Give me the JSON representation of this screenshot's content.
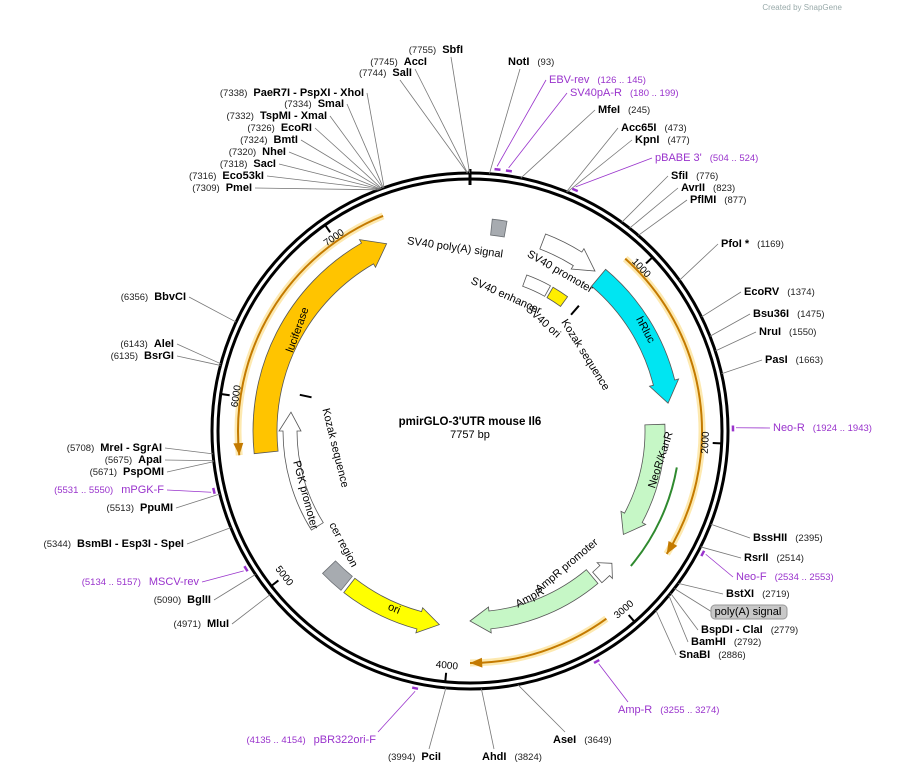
{
  "header": {
    "credit": "Created by SnapGene"
  },
  "map": {
    "name": "pmirGLO-3'UTR mouse Il6",
    "length": "7757 bp",
    "ticks": [
      1000,
      2000,
      3000,
      4000,
      5000,
      6000,
      7000
    ]
  },
  "sites": [
    {
      "name": "SbfI",
      "position": "(7755)"
    },
    {
      "name": "AccI",
      "position": "(7745)"
    },
    {
      "name": "SalI",
      "position": "(7744)"
    },
    {
      "name": "PaeR7I - PspXI - XhoI",
      "position": "(7338)"
    },
    {
      "name": "SmaI",
      "position": "(7334)"
    },
    {
      "name": "TspMI - XmaI",
      "position": "(7332)"
    },
    {
      "name": "EcoRI",
      "position": "(7326)"
    },
    {
      "name": "BmtI",
      "position": "(7324)"
    },
    {
      "name": "NheI",
      "position": "(7320)"
    },
    {
      "name": "SacI",
      "position": "(7318)"
    },
    {
      "name": "Eco53kI",
      "position": "(7316)"
    },
    {
      "name": "PmeI",
      "position": "(7309)"
    },
    {
      "name": "NotI",
      "position": "(93)"
    },
    {
      "name": "MfeI",
      "position": "(245)"
    },
    {
      "name": "Acc65I",
      "position": "(473)"
    },
    {
      "name": "KpnI",
      "position": "(477)"
    },
    {
      "name": "SfiI",
      "position": "(776)"
    },
    {
      "name": "AvrII",
      "position": "(823)"
    },
    {
      "name": "PflMI",
      "position": "(877)"
    },
    {
      "name": "PfoI *",
      "position": "(1169)"
    },
    {
      "name": "EcoRV",
      "position": "(1374)"
    },
    {
      "name": "Bsu36I",
      "position": "(1475)"
    },
    {
      "name": "NruI",
      "position": "(1550)"
    },
    {
      "name": "PasI",
      "position": "(1663)"
    },
    {
      "name": "BssHII",
      "position": "(2395)"
    },
    {
      "name": "RsrII",
      "position": "(2514)"
    },
    {
      "name": "BstXI",
      "position": "(2719)"
    },
    {
      "name": "BspDI - ClaI",
      "position": "(2779)"
    },
    {
      "name": "BamHI",
      "position": "(2792)"
    },
    {
      "name": "SnaBI",
      "position": "(2886)"
    },
    {
      "name": "AseI",
      "position": "(3649)"
    },
    {
      "name": "AhdI",
      "position": "(3824)"
    },
    {
      "name": "PciI",
      "position": "(3994)"
    },
    {
      "name": "MluI",
      "position": "(4971)"
    },
    {
      "name": "BglII",
      "position": "(5090)"
    },
    {
      "name": "BsmBI - Esp3I - SpeI",
      "position": "(5344)"
    },
    {
      "name": "PpuMI",
      "position": "(5513)"
    },
    {
      "name": "PspOMI",
      "position": "(5671)"
    },
    {
      "name": "ApaI",
      "position": "(5675)"
    },
    {
      "name": "MreI - SgrAI",
      "position": "(5708)"
    },
    {
      "name": "BsrGI",
      "position": "(6135)"
    },
    {
      "name": "AleI",
      "position": "(6143)"
    },
    {
      "name": "BbvCI",
      "position": "(6356)"
    }
  ],
  "primers": [
    {
      "name": "EBV-rev",
      "range": "(126 .. 145)"
    },
    {
      "name": "SV40pA-R",
      "range": "(180 .. 199)"
    },
    {
      "name": "pBABE 3'",
      "range": "(504 .. 524)"
    },
    {
      "name": "Neo-R",
      "range": "(1924 .. 1943)"
    },
    {
      "name": "Neo-F",
      "range": "(2534 .. 2553)"
    },
    {
      "name": "Amp-R",
      "range": "(3255 .. 3274)"
    },
    {
      "name": "pBR322ori-F",
      "range": "(4135 .. 4154)"
    },
    {
      "name": "MSCV-rev",
      "range": "(5134 .. 5157)"
    },
    {
      "name": "mPGK-F",
      "range": "(5531 .. 5550)"
    }
  ],
  "features": [
    {
      "label": "SV40 poly(A) signal"
    },
    {
      "label": "SV40 promoter"
    },
    {
      "label": "SV40 enhancer"
    },
    {
      "label": "SV40 ori"
    },
    {
      "label": "Kozak sequence"
    },
    {
      "label": "hRluc"
    },
    {
      "label": "NeoR/KanR"
    },
    {
      "label": "AmpR promoter"
    },
    {
      "label": "AmpR"
    },
    {
      "label": "ori"
    },
    {
      "label": "cer region"
    },
    {
      "label": "PGK promoter"
    },
    {
      "label": "Kozak sequence"
    },
    {
      "label": "luciferase"
    },
    {
      "label": "poly(A) signal"
    }
  ]
}
